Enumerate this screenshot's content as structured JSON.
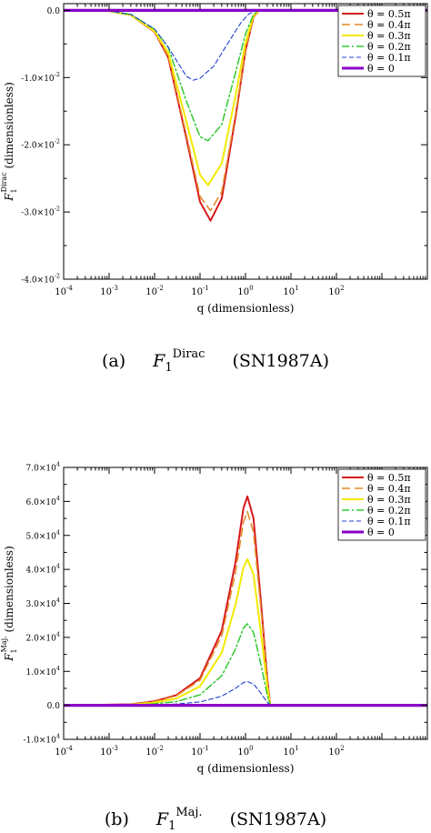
{
  "colors": {
    "s05": "#d7191c",
    "s04": "#e58b2a",
    "s03": "#f2ea00",
    "s02": "#32c832",
    "s01": "#1f3fd0",
    "s00": "#8a00c8"
  },
  "chart_data": [
    {
      "type": "line",
      "x_scale": "log",
      "xlim": [
        0.0001,
        10000
      ],
      "ylim": [
        -0.04,
        0.001
      ],
      "xlabel": "q (dimensionless)",
      "ylabel_main": "F",
      "ylabel_sub": "1",
      "ylabel_sup": "Dirac",
      "ylabel_rest": " (dimensionless)",
      "x_ticks": [
        {
          "value": 0.0001,
          "base": "10",
          "exp": "-4"
        },
        {
          "value": 0.001,
          "base": "10",
          "exp": "-3"
        },
        {
          "value": 0.01,
          "base": "10",
          "exp": "-2"
        },
        {
          "value": 0.1,
          "base": "10",
          "exp": "-1"
        },
        {
          "value": 1,
          "base": "10",
          "exp": "0"
        },
        {
          "value": 10,
          "base": "10",
          "exp": "1"
        },
        {
          "value": 100,
          "base": "10",
          "exp": "2"
        }
      ],
      "y_ticks": [
        {
          "value": 0.0,
          "text": "0.0",
          "exp": ""
        },
        {
          "value": -0.01,
          "text": "-1.0×10",
          "exp": "-2"
        },
        {
          "value": -0.02,
          "text": "-2.0×10",
          "exp": "-2"
        },
        {
          "value": -0.03,
          "text": "-3.0×10",
          "exp": "-2"
        },
        {
          "value": -0.04,
          "text": "-4.0×10",
          "exp": "-2"
        }
      ],
      "legend_position": "top-right",
      "grid": false,
      "series": [
        {
          "name": "θ = 0.5π",
          "color_key": "s05",
          "dash": "",
          "width": 2,
          "x": [
            0.0001,
            0.001,
            0.003,
            0.01,
            0.02,
            0.05,
            0.1,
            0.17,
            0.3,
            0.6,
            1.0,
            1.5,
            2,
            100
          ],
          "y": [
            0,
            -0.0001,
            -0.0007,
            -0.0032,
            -0.007,
            -0.019,
            -0.0285,
            -0.0313,
            -0.028,
            -0.016,
            -0.006,
            -0.001,
            0,
            0
          ]
        },
        {
          "name": "θ = 0.4π",
          "color_key": "s04",
          "dash": "9,5",
          "width": 1.6,
          "x": [
            0.0001,
            0.001,
            0.003,
            0.01,
            0.02,
            0.05,
            0.1,
            0.17,
            0.3,
            0.6,
            1.0,
            1.5,
            2,
            100
          ],
          "y": [
            0,
            -0.0001,
            -0.0007,
            -0.0032,
            -0.0068,
            -0.0185,
            -0.0277,
            -0.0298,
            -0.027,
            -0.0155,
            -0.0058,
            -0.001,
            0,
            0
          ]
        },
        {
          "name": "θ = 0.3π",
          "color_key": "s03",
          "dash": "",
          "width": 2,
          "x": [
            0.0001,
            0.001,
            0.003,
            0.01,
            0.02,
            0.05,
            0.1,
            0.15,
            0.3,
            0.6,
            1.0,
            1.5,
            2,
            100
          ],
          "y": [
            0,
            -0.0001,
            -0.0007,
            -0.0031,
            -0.0063,
            -0.0165,
            -0.0245,
            -0.026,
            -0.0228,
            -0.0128,
            -0.0048,
            -0.0008,
            0,
            0
          ]
        },
        {
          "name": "θ = 0.2π",
          "color_key": "s02",
          "dash": "8,3,2,3",
          "width": 1.5,
          "x": [
            0.0001,
            0.001,
            0.003,
            0.01,
            0.02,
            0.05,
            0.1,
            0.15,
            0.3,
            0.6,
            1.0,
            1.5,
            2,
            100
          ],
          "y": [
            0,
            -0.0001,
            -0.0006,
            -0.0028,
            -0.0055,
            -0.0135,
            -0.0188,
            -0.0194,
            -0.017,
            -0.0093,
            -0.0035,
            -0.0006,
            0,
            0
          ]
        },
        {
          "name": "θ = 0.1π",
          "color_key": "s01",
          "dash": "5,3",
          "width": 1.1,
          "x": [
            0.0001,
            0.001,
            0.003,
            0.01,
            0.02,
            0.05,
            0.07,
            0.1,
            0.2,
            0.4,
            0.8,
            1.2,
            1.8,
            100
          ],
          "y": [
            0,
            -0.0001,
            -0.0006,
            -0.0028,
            -0.0055,
            -0.0098,
            -0.0104,
            -0.0101,
            -0.0083,
            -0.005,
            -0.0018,
            -0.0005,
            0,
            0
          ]
        },
        {
          "name": "θ = 0",
          "color_key": "s00",
          "dash": "",
          "width": 3.2,
          "x": [
            0.0001,
            10000
          ],
          "y": [
            0,
            0
          ]
        }
      ]
    },
    {
      "type": "line",
      "x_scale": "log",
      "xlim": [
        0.0001,
        10000
      ],
      "ylim": [
        -10000,
        70000
      ],
      "xlabel": "q (dimensionless)",
      "ylabel_main": "F",
      "ylabel_sub": "1",
      "ylabel_sup": "Maj.",
      "ylabel_rest": " (dimensionless)",
      "x_ticks": [
        {
          "value": 0.0001,
          "base": "10",
          "exp": "-4"
        },
        {
          "value": 0.001,
          "base": "10",
          "exp": "-3"
        },
        {
          "value": 0.01,
          "base": "10",
          "exp": "-2"
        },
        {
          "value": 0.1,
          "base": "10",
          "exp": "-1"
        },
        {
          "value": 1,
          "base": "10",
          "exp": "0"
        },
        {
          "value": 10,
          "base": "10",
          "exp": "1"
        },
        {
          "value": 100,
          "base": "10",
          "exp": "2"
        }
      ],
      "y_ticks": [
        {
          "value": 70000,
          "text": "7.0×10",
          "exp": "4"
        },
        {
          "value": 60000,
          "text": "6.0×10",
          "exp": "4"
        },
        {
          "value": 50000,
          "text": "5.0×10",
          "exp": "4"
        },
        {
          "value": 40000,
          "text": "4.0×10",
          "exp": "4"
        },
        {
          "value": 30000,
          "text": "3.0×10",
          "exp": "4"
        },
        {
          "value": 20000,
          "text": "2.0×10",
          "exp": "4"
        },
        {
          "value": 10000,
          "text": "1.0×10",
          "exp": "4"
        },
        {
          "value": 0,
          "text": "0.0",
          "exp": ""
        },
        {
          "value": -10000,
          "text": "-1.0×10",
          "exp": "4"
        }
      ],
      "legend_position": "top-right",
      "grid": false,
      "series": [
        {
          "name": "θ = 0.5π",
          "color_key": "s05",
          "dash": "",
          "width": 2,
          "x": [
            0.0001,
            0.003,
            0.01,
            0.03,
            0.1,
            0.3,
            0.6,
            0.9,
            1.1,
            1.5,
            2.2,
            3,
            3.5,
            100
          ],
          "y": [
            0,
            300,
            1200,
            3000,
            8000,
            22000,
            42000,
            58000,
            61500,
            55000,
            30000,
            8000,
            0,
            0
          ]
        },
        {
          "name": "θ = 0.4π",
          "color_key": "s04",
          "dash": "9,5",
          "width": 1.6,
          "x": [
            0.0001,
            0.003,
            0.01,
            0.03,
            0.1,
            0.3,
            0.6,
            0.9,
            1.1,
            1.5,
            2.2,
            3,
            3.5,
            100
          ],
          "y": [
            0,
            280,
            1100,
            2800,
            7400,
            20500,
            39000,
            54000,
            57000,
            51000,
            28000,
            7400,
            0,
            0
          ]
        },
        {
          "name": "θ = 0.3π",
          "color_key": "s03",
          "dash": "",
          "width": 2,
          "x": [
            0.0001,
            0.003,
            0.01,
            0.03,
            0.1,
            0.3,
            0.6,
            0.9,
            1.1,
            1.5,
            2.2,
            3,
            3.5,
            100
          ],
          "y": [
            0,
            200,
            800,
            2000,
            5600,
            15500,
            29500,
            40500,
            43000,
            38500,
            21000,
            5600,
            0,
            0
          ]
        },
        {
          "name": "θ = 0.2π",
          "color_key": "s02",
          "dash": "8,3,2,3",
          "width": 1.5,
          "x": [
            0.0001,
            0.003,
            0.01,
            0.03,
            0.1,
            0.3,
            0.6,
            0.9,
            1.1,
            1.5,
            2.2,
            3,
            3.5,
            100
          ],
          "y": [
            0,
            110,
            450,
            1100,
            3100,
            8700,
            16500,
            22700,
            24000,
            21500,
            11800,
            3100,
            0,
            0
          ]
        },
        {
          "name": "θ = 0.1π",
          "color_key": "s01",
          "dash": "5,3",
          "width": 1.1,
          "x": [
            0.0001,
            0.01,
            0.03,
            0.1,
            0.3,
            0.6,
            0.9,
            1.1,
            1.5,
            2.2,
            3,
            3.5,
            100
          ],
          "y": [
            0,
            150,
            400,
            1000,
            2700,
            5000,
            6700,
            7000,
            6300,
            3500,
            900,
            0,
            0
          ]
        },
        {
          "name": "θ = 0",
          "color_key": "s00",
          "dash": "",
          "width": 3.2,
          "x": [
            0.0001,
            10000
          ],
          "y": [
            0,
            0
          ]
        }
      ]
    }
  ],
  "captions": [
    {
      "tag": "(a)",
      "sym": "F",
      "sub": "1",
      "sup": "Dirac",
      "label": "(SN1987A)"
    },
    {
      "tag": "(b)",
      "sym": "F",
      "sub": "1",
      "sup": "Maj.",
      "label": "(SN1987A)"
    }
  ]
}
